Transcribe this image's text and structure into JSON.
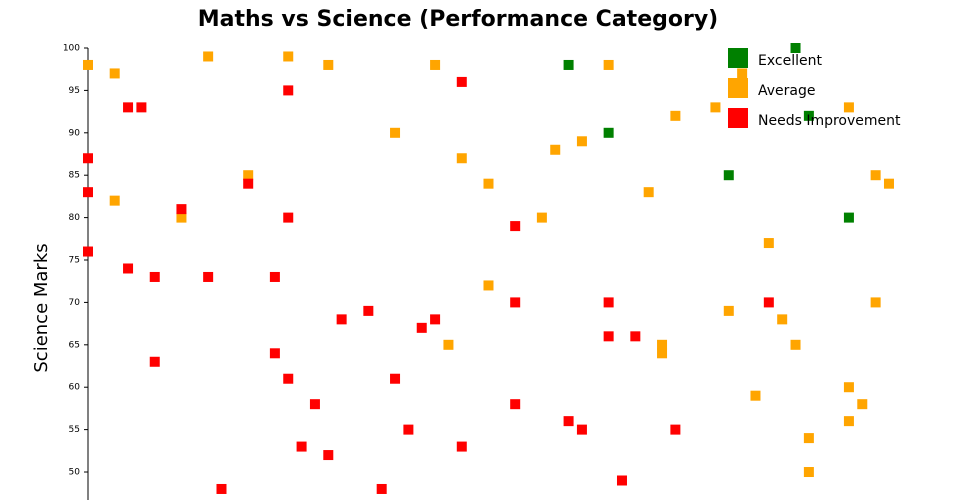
{
  "chart_data": {
    "type": "scatter",
    "title": "Maths vs Science (Performance Category)",
    "y_label": "Science Marks",
    "xlim": [
      40,
      101.5
    ],
    "ylim": [
      46.7,
      100
    ],
    "yticks": [
      50,
      55,
      60,
      65,
      70,
      75,
      80,
      85,
      90,
      95,
      100
    ],
    "marker": "square",
    "legend": "top-right",
    "series": [
      {
        "name": "Excellent",
        "color": "#008000",
        "x": [
          76,
          79,
          93,
          94,
          88,
          97
        ],
        "y": [
          98,
          90,
          100,
          92,
          85,
          80
        ]
      },
      {
        "name": "Average",
        "color": "#ffa500",
        "x": [
          40,
          42,
          49,
          55,
          58,
          66,
          79,
          89,
          87,
          97,
          84,
          63,
          77,
          75,
          68,
          52,
          99,
          100,
          70,
          82,
          42,
          74,
          47,
          91,
          70,
          99,
          88,
          92,
          67,
          83,
          83,
          93,
          97,
          90,
          98,
          97,
          94,
          94
        ],
        "y": [
          98,
          97,
          99,
          99,
          98,
          98,
          98,
          97,
          93,
          93,
          92,
          90,
          89,
          88,
          87,
          85,
          85,
          84,
          84,
          83,
          82,
          80,
          80,
          77,
          72,
          70,
          69,
          68,
          65,
          65,
          64,
          65,
          60,
          59,
          58,
          56,
          54,
          50
        ]
      },
      {
        "name": "Needs Improvement",
        "color": "#ff0000",
        "x": [
          40,
          40,
          40,
          43,
          44,
          55,
          68,
          52,
          47,
          55,
          72,
          43,
          45,
          49,
          54,
          72,
          79,
          91,
          61,
          59,
          66,
          65,
          79,
          81,
          45,
          54,
          55,
          63,
          57,
          72,
          76,
          77,
          64,
          84,
          56,
          68,
          58,
          80,
          50,
          62
        ],
        "y": [
          87,
          83,
          76,
          93,
          93,
          95,
          96,
          84,
          81,
          80,
          79,
          74,
          73,
          73,
          73,
          70,
          70,
          70,
          69,
          68,
          68,
          67,
          66,
          66,
          63,
          64,
          61,
          61,
          58,
          58,
          56,
          55,
          55,
          55,
          53,
          53,
          52,
          49,
          48,
          48
        ]
      }
    ]
  }
}
